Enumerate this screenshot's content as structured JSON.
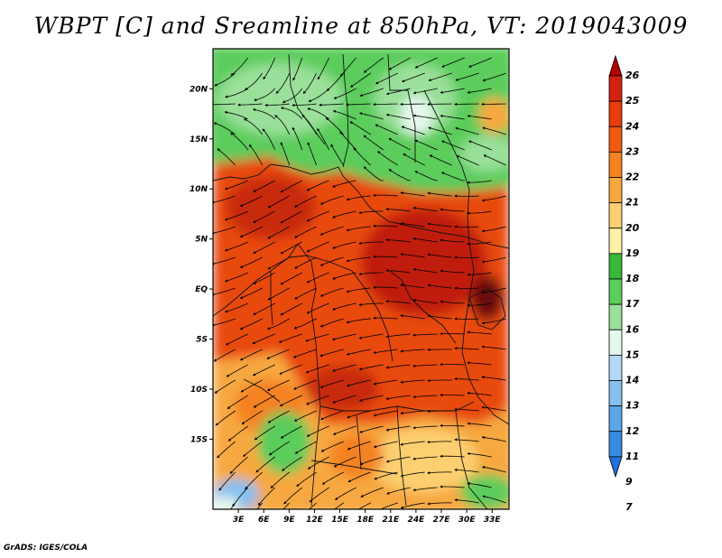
{
  "title": "WBPT [C] and Sreamline at 850hPa, VT: 2019043009",
  "credit": "GrADS: IGES/COLA",
  "map": {
    "extent": {
      "lon_min": 0,
      "lon_max": 35,
      "lat_min": -22,
      "lat_max": 24
    },
    "lat_ticks": [
      {
        "label": "20N",
        "lat": 20
      },
      {
        "label": "15N",
        "lat": 15
      },
      {
        "label": "10N",
        "lat": 10
      },
      {
        "label": "5N",
        "lat": 5
      },
      {
        "label": "EQ",
        "lat": 0
      },
      {
        "label": "5S",
        "lat": -5
      },
      {
        "label": "10S",
        "lat": -10
      },
      {
        "label": "15S",
        "lat": -15
      }
    ],
    "lon_ticks": [
      {
        "label": "3E",
        "lon": 3
      },
      {
        "label": "6E",
        "lon": 6
      },
      {
        "label": "9E",
        "lon": 9
      },
      {
        "label": "12E",
        "lon": 12
      },
      {
        "label": "15E",
        "lon": 15
      },
      {
        "label": "18E",
        "lon": 18
      },
      {
        "label": "21E",
        "lon": 21
      },
      {
        "label": "24E",
        "lon": 24
      },
      {
        "label": "27E",
        "lon": 27
      },
      {
        "label": "30E",
        "lon": 30
      },
      {
        "label": "33E",
        "lon": 33
      }
    ]
  },
  "colorbar": {
    "labels": [
      "26",
      "25",
      "24",
      "23",
      "22",
      "21",
      "20",
      "19",
      "18",
      "17",
      "16",
      "15",
      "14",
      "13",
      "12",
      "11",
      "9",
      "7"
    ],
    "colors": [
      "#b00000",
      "#d42010",
      "#e83c0c",
      "#f05a10",
      "#f58220",
      "#f7a840",
      "#fccf70",
      "#fff0a8",
      "#38b838",
      "#5ccc5c",
      "#9ae09a",
      "#e6f8ee",
      "#b2daf8",
      "#84c0f0",
      "#5ca6ea",
      "#3a8ae2",
      "#2070dc"
    ],
    "min_color": "#2070dc",
    "max_color": "#b00000"
  }
}
